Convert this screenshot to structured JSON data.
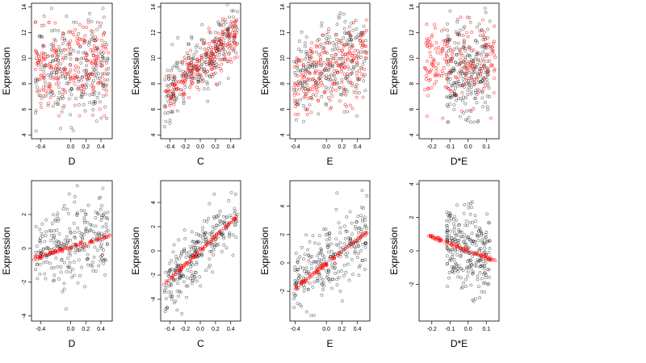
{
  "colors": {
    "observed": "#000000",
    "fitted": "#ff0000"
  },
  "chart_data": [
    {
      "type": "scatter",
      "xlabel": "D",
      "ylabel": "Expression",
      "xlim": [
        -0.52,
        0.55
      ],
      "ylim": [
        3.7,
        14.3
      ],
      "xticks": [
        -0.4,
        0.0,
        0.2,
        0.4
      ],
      "xtick_labels": [
        "-0.4",
        "0.0",
        "0.2",
        "0.4"
      ],
      "yticks": [
        4,
        6,
        8,
        10,
        12,
        14
      ],
      "ytick_labels": [
        "4",
        "6",
        "8",
        "10",
        "12",
        "14"
      ],
      "series": [
        {
          "role": "observed",
          "x_range": [
            -0.47,
            0.5
          ],
          "y_range": [
            4.3,
            13.9
          ],
          "trend": [
            [
              -0.47,
              8.8
            ],
            [
              0.5,
              9.6
            ]
          ],
          "spread": 1.9,
          "n": 260
        },
        {
          "role": "fitted",
          "x_range": [
            -0.47,
            0.5
          ],
          "y_range": [
            5.5,
            12.8
          ],
          "trend": [
            [
              -0.47,
              9.0
            ],
            [
              0.5,
              9.5
            ]
          ],
          "spread": 1.6,
          "n": 210
        }
      ]
    },
    {
      "type": "scatter",
      "xlabel": "C",
      "ylabel": "Expression",
      "xlim": [
        -0.52,
        0.53
      ],
      "ylim": [
        3.7,
        14.3
      ],
      "xticks": [
        -0.4,
        -0.2,
        0.0,
        0.2,
        0.4
      ],
      "xtick_labels": [
        "-0.4",
        "-0.2",
        "0.0",
        "0.2",
        "0.4"
      ],
      "yticks": [
        4,
        6,
        8,
        10,
        12,
        14
      ],
      "ytick_labels": [
        "4",
        "6",
        "8",
        "10",
        "12",
        "14"
      ],
      "series": [
        {
          "role": "observed",
          "x_range": [
            -0.47,
            0.49
          ],
          "y_range": [
            4.5,
            14.2
          ],
          "trend": [
            [
              -0.47,
              6.8
            ],
            [
              0.49,
              12.3
            ]
          ],
          "spread": 1.2,
          "n": 260
        },
        {
          "role": "fitted",
          "x_range": [
            -0.47,
            0.49
          ],
          "y_range": [
            5.5,
            13.5
          ],
          "trend": [
            [
              -0.47,
              7.0
            ],
            [
              0.49,
              12.0
            ]
          ],
          "spread": 0.9,
          "n": 210
        }
      ]
    },
    {
      "type": "scatter",
      "xlabel": "E",
      "ylabel": "Expression",
      "xlim": [
        -0.47,
        0.56
      ],
      "ylim": [
        3.7,
        14.3
      ],
      "xticks": [
        -0.4,
        0.0,
        0.2,
        0.4
      ],
      "xtick_labels": [
        "-0.4",
        "0.0",
        "0.2",
        "0.4"
      ],
      "yticks": [
        4,
        6,
        8,
        10,
        12,
        14
      ],
      "ytick_labels": [
        "4",
        "6",
        "8",
        "10",
        "12",
        "14"
      ],
      "series": [
        {
          "role": "observed",
          "x_range": [
            -0.42,
            0.52
          ],
          "y_range": [
            4.8,
            13.9
          ],
          "trend": [
            [
              -0.42,
              8.2
            ],
            [
              0.52,
              10.2
            ]
          ],
          "spread": 1.7,
          "n": 260
        },
        {
          "role": "fitted",
          "x_range": [
            -0.42,
            0.52
          ],
          "y_range": [
            5.6,
            13.0
          ],
          "trend": [
            [
              -0.42,
              7.8
            ],
            [
              0.52,
              10.2
            ]
          ],
          "spread": 1.4,
          "n": 210
        }
      ]
    },
    {
      "type": "scatter",
      "xlabel": "D*E",
      "ylabel": "Expression",
      "xlim": [
        -0.27,
        0.17
      ],
      "ylim": [
        3.7,
        14.3
      ],
      "xticks": [
        -0.2,
        -0.1,
        0.0,
        0.1
      ],
      "xtick_labels": [
        "-0.2",
        "-0.1",
        "0.0",
        "0.1"
      ],
      "yticks": [
        4,
        6,
        8,
        10,
        12,
        14
      ],
      "ytick_labels": [
        "4",
        "6",
        "8",
        "10",
        "12",
        "14"
      ],
      "series": [
        {
          "role": "observed",
          "x_range": [
            -0.12,
            0.12
          ],
          "y_range": [
            5.0,
            13.9
          ],
          "trend": [
            [
              -0.12,
              9.3
            ],
            [
              0.12,
              9.1
            ]
          ],
          "spread": 1.9,
          "n": 260
        },
        {
          "role": "fitted",
          "x_range": [
            -0.24,
            0.15
          ],
          "y_range": [
            5.3,
            13.2
          ],
          "trend": [
            [
              -0.24,
              9.6
            ],
            [
              0.15,
              9.2
            ]
          ],
          "spread": 1.7,
          "n": 190
        }
      ]
    },
    {
      "type": "scatter",
      "xlabel": "D",
      "ylabel": "Expression",
      "xlim": [
        -0.52,
        0.55
      ],
      "ylim": [
        -4.3,
        4.0
      ],
      "xticks": [
        -0.4,
        0.0,
        0.2,
        0.4
      ],
      "xtick_labels": [
        "-0.4",
        "0.0",
        "0.2",
        "0.4"
      ],
      "yticks": [
        -4,
        -2,
        0,
        2
      ],
      "ytick_labels": [
        "-4",
        "-2",
        "0",
        "2"
      ],
      "series": [
        {
          "role": "observed",
          "x_range": [
            -0.47,
            0.5
          ],
          "y_range": [
            -4.1,
            3.7
          ],
          "trend": [
            [
              -0.47,
              -0.4
            ],
            [
              0.5,
              0.6
            ]
          ],
          "spread": 1.2,
          "n": 260
        },
        {
          "role": "fitted",
          "x_range": [
            -0.5,
            0.53
          ],
          "y_range": [
            -0.7,
            0.8
          ],
          "trend": [
            [
              -0.5,
              -0.6
            ],
            [
              0.53,
              0.75
            ]
          ],
          "spread": 0.06,
          "n": 90
        }
      ]
    },
    {
      "type": "scatter",
      "xlabel": "C",
      "ylabel": "Expression",
      "xlim": [
        -0.52,
        0.53
      ],
      "ylim": [
        -5.8,
        5.8
      ],
      "xticks": [
        -0.4,
        -0.2,
        0.0,
        0.2,
        0.4
      ],
      "xtick_labels": [
        "-0.4",
        "-0.2",
        "0.0",
        "0.2",
        "0.4"
      ],
      "yticks": [
        -4,
        -2,
        0,
        2,
        4
      ],
      "ytick_labels": [
        "-4",
        "-2",
        "0",
        "2",
        "4"
      ],
      "series": [
        {
          "role": "observed",
          "x_range": [
            -0.47,
            0.49
          ],
          "y_range": [
            -5.2,
            5.0
          ],
          "trend": [
            [
              -0.47,
              -2.8
            ],
            [
              0.49,
              3.2
            ]
          ],
          "spread": 1.2,
          "n": 260
        },
        {
          "role": "fitted",
          "x_range": [
            -0.48,
            0.49
          ],
          "y_range": [
            -2.9,
            3.0
          ],
          "trend": [
            [
              -0.48,
              -2.8
            ],
            [
              0.49,
              2.9
            ]
          ],
          "spread": 0.08,
          "n": 90
        }
      ]
    },
    {
      "type": "scatter",
      "xlabel": "E",
      "ylabel": "Expression",
      "xlim": [
        -0.47,
        0.56
      ],
      "ylim": [
        -4.1,
        5.8
      ],
      "xticks": [
        -0.4,
        0.0,
        0.2,
        0.4
      ],
      "xtick_labels": [
        "-0.4",
        "0.0",
        "0.2",
        "0.4"
      ],
      "yticks": [
        -2,
        0,
        2,
        4
      ],
      "ytick_labels": [
        "-2",
        "0",
        "2",
        "4"
      ],
      "series": [
        {
          "role": "observed",
          "x_range": [
            -0.42,
            0.52
          ],
          "y_range": [
            -3.7,
            5.5
          ],
          "trend": [
            [
              -0.42,
              -1.6
            ],
            [
              0.52,
              2.2
            ]
          ],
          "spread": 1.2,
          "n": 260
        },
        {
          "role": "fitted",
          "x_range": [
            -0.43,
            0.53
          ],
          "y_range": [
            -1.9,
            2.3
          ],
          "trend": [
            [
              -0.43,
              -1.9
            ],
            [
              0.53,
              2.2
            ]
          ],
          "spread": 0.08,
          "n": 90
        }
      ]
    },
    {
      "type": "scatter",
      "xlabel": "D*E",
      "ylabel": "Expression",
      "xlim": [
        -0.27,
        0.17
      ],
      "ylim": [
        -4.2,
        4.2
      ],
      "xticks": [
        -0.2,
        -0.1,
        0.0,
        0.1
      ],
      "xtick_labels": [
        "-0.2",
        "-0.1",
        "0.0",
        "0.1"
      ],
      "yticks": [
        -2,
        0,
        2,
        4
      ],
      "ytick_labels": [
        "-2",
        "0",
        "2",
        "4"
      ],
      "series": [
        {
          "role": "observed",
          "x_range": [
            -0.12,
            0.12
          ],
          "y_range": [
            -3.8,
            4.0
          ],
          "trend": [
            [
              -0.12,
              0.5
            ],
            [
              0.12,
              -0.4
            ]
          ],
          "spread": 1.2,
          "n": 260
        },
        {
          "role": "fitted",
          "x_range": [
            -0.24,
            0.15
          ],
          "y_range": [
            -0.6,
            1.1
          ],
          "trend": [
            [
              -0.24,
              1.0
            ],
            [
              0.15,
              -0.6
            ]
          ],
          "spread": 0.06,
          "n": 90
        }
      ]
    }
  ]
}
